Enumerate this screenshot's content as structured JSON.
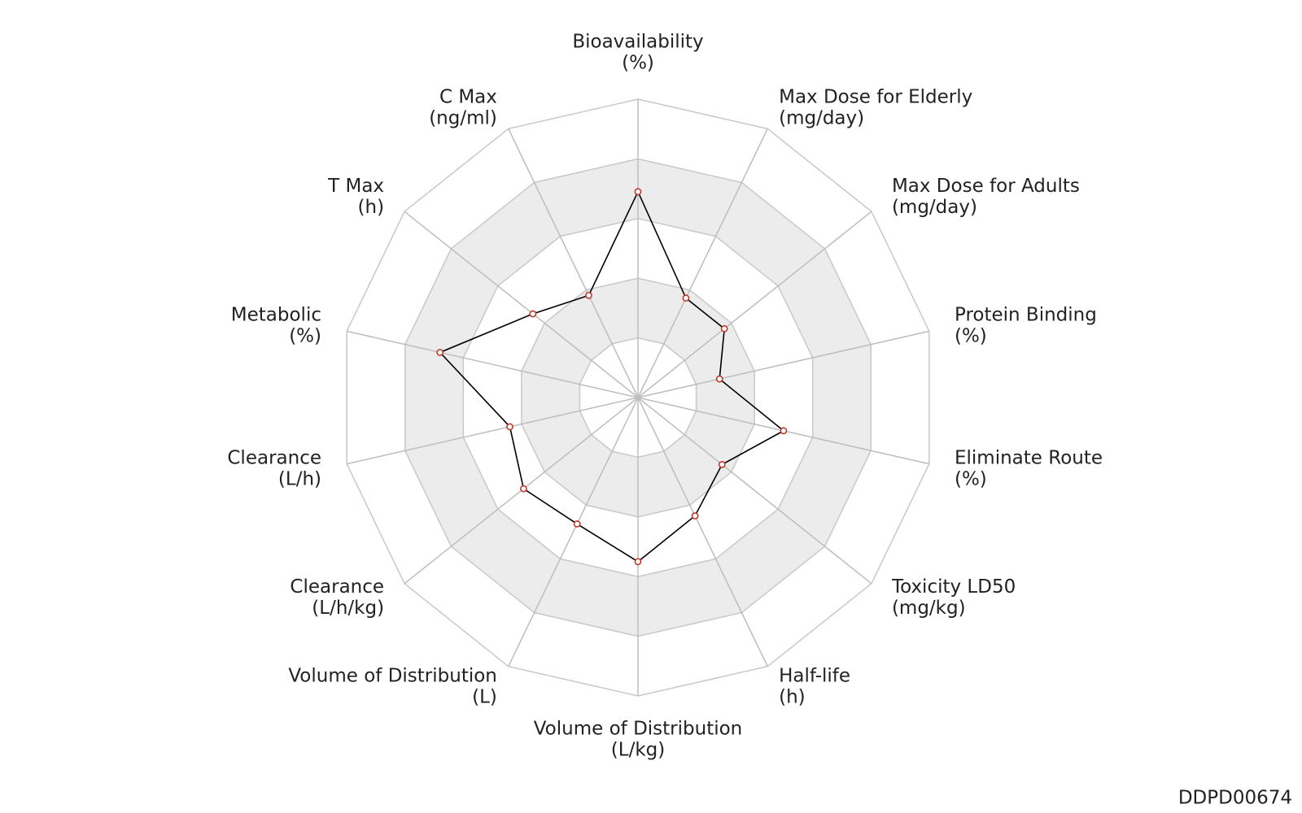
{
  "chart_data": {
    "type": "radar",
    "categories": [
      [
        "Bioavailability",
        "(%)"
      ],
      [
        "Max Dose for Elderly",
        "(mg/day)"
      ],
      [
        "Max Dose for Adults",
        "(mg/day)"
      ],
      [
        "Protein Binding",
        "(%)"
      ],
      [
        "Eliminate Route",
        "(%)"
      ],
      [
        "Toxicity LD50",
        "(mg/kg)"
      ],
      [
        "Half-life",
        "(h)"
      ],
      [
        "Volume of Distribution",
        "(L/kg)"
      ],
      [
        "Volume of Distribution",
        "(L)"
      ],
      [
        "Clearance",
        "(L/h/kg)"
      ],
      [
        "Clearance",
        "(L/h)"
      ],
      [
        "Metabolic",
        "(%)"
      ],
      [
        "T Max",
        "(h)"
      ],
      [
        "C Max",
        "(ng/ml)"
      ]
    ],
    "values": [
      0.69,
      0.37,
      0.37,
      0.28,
      0.5,
      0.36,
      0.44,
      0.55,
      0.47,
      0.49,
      0.44,
      0.68,
      0.45,
      0.38
    ],
    "rlim": [
      0,
      1
    ],
    "rticks": [
      0.2,
      0.4,
      0.6,
      0.8,
      1.0
    ],
    "band_colors": [
      "#ffffff",
      "#ececec"
    ],
    "line_color": "#000000",
    "marker_color": "#c0392b",
    "footer": "DDPD00674"
  }
}
